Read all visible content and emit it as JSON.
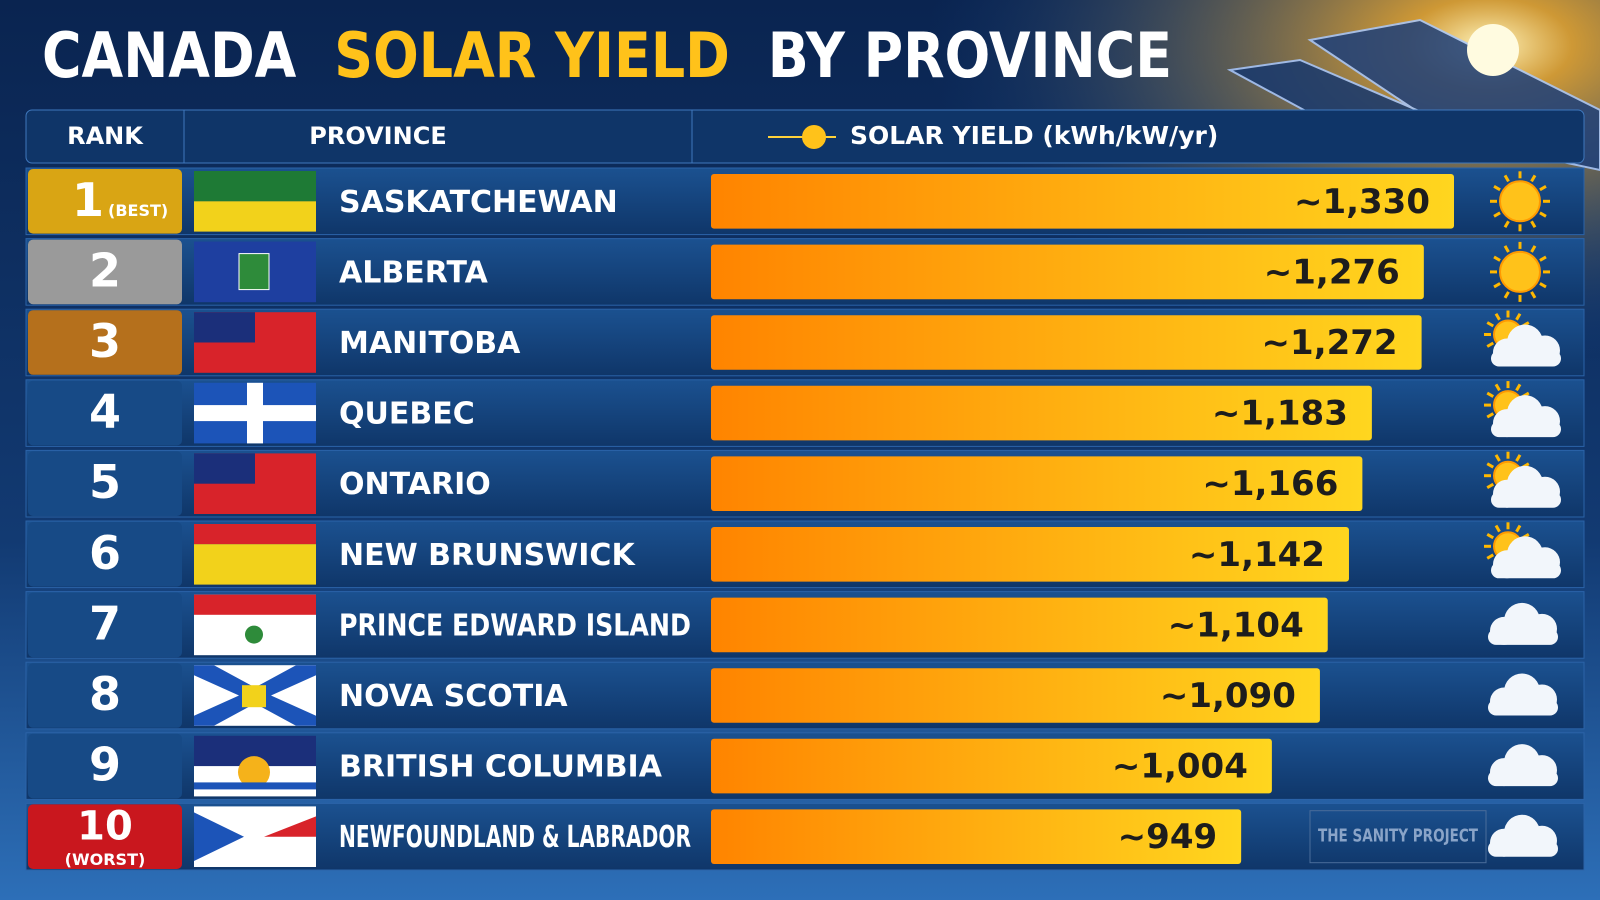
{
  "chart_data": {
    "type": "bar",
    "orientation": "horizontal",
    "title": [
      "CANADA",
      "SOLAR YIELD",
      "BY PROVINCE"
    ],
    "headers": [
      "RANK",
      "PROVINCE",
      "SOLAR YIELD (kWh/kW/yr)"
    ],
    "ranks": [
      1,
      2,
      3,
      4,
      5,
      6,
      7,
      8,
      9,
      10
    ],
    "rank_notes": [
      "(BEST)",
      null,
      null,
      null,
      null,
      null,
      null,
      null,
      null,
      "(WORST)"
    ],
    "categories": [
      "SASKATCHEWAN",
      "ALBERTA",
      "MANITOBA",
      "QUEBEC",
      "ONTARIO",
      "NEW BRUNSWICK",
      "PRINCE EDWARD ISLAND",
      "NOVA SCOTIA",
      "BRITISH COLUMBIA",
      "NEWFOUNDLAND & LABRADOR"
    ],
    "values": [
      1330,
      1276,
      1272,
      1183,
      1166,
      1142,
      1104,
      1090,
      1004,
      949
    ],
    "value_labels": [
      "~1,330",
      "~1,276",
      "~1,272",
      "~1,183",
      "~1,166",
      "~1,142",
      "~1,104",
      "~1,090",
      "~1,004",
      "~949"
    ],
    "colors": [
      "#ff8400",
      "#ffd61f"
    ],
    "watermark": "THE SANITY PROJECT"
  }
}
